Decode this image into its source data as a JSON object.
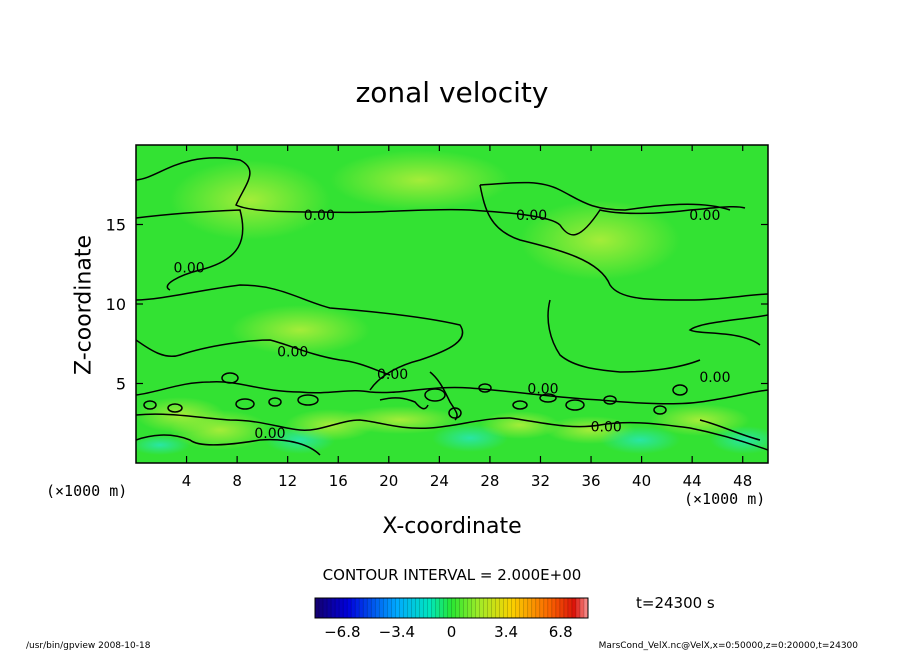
{
  "chart_data": {
    "type": "heatmap",
    "title": "zonal velocity",
    "xlabel": "X-coordinate",
    "ylabel": "Z-coordinate",
    "x_unit_left": "(×1000 m)",
    "x_unit_right": "(×1000 m)",
    "xlim": [
      0,
      50
    ],
    "ylim": [
      0,
      20
    ],
    "x_ticks": [
      4,
      8,
      12,
      16,
      20,
      24,
      28,
      32,
      36,
      40,
      44,
      48
    ],
    "y_ticks": [
      5,
      10,
      15
    ],
    "contour_interval_text": "CONTOUR INTERVAL = 2.000E+00",
    "contour_labels": [
      {
        "text": "0.00",
        "x": 14.5,
        "y": 15.6
      },
      {
        "text": "0.00",
        "x": 31.3,
        "y": 15.6
      },
      {
        "text": "0.00",
        "x": 45.0,
        "y": 15.6
      },
      {
        "text": "0.00",
        "x": 4.2,
        "y": 12.3
      },
      {
        "text": "0.00",
        "x": 12.4,
        "y": 7.0
      },
      {
        "text": "0.00",
        "x": 20.3,
        "y": 5.6
      },
      {
        "text": "0.00",
        "x": 32.2,
        "y": 4.7
      },
      {
        "text": "0.00",
        "x": 45.8,
        "y": 5.4
      },
      {
        "text": "0.00",
        "x": 10.6,
        "y": 1.9
      },
      {
        "text": "0.00",
        "x": 37.2,
        "y": 2.3
      }
    ],
    "colorbar": {
      "min": -8.5,
      "max": 8.5,
      "ticks": [
        -6.8,
        -3.4,
        0,
        3.4,
        6.8
      ],
      "tick_labels": [
        "−6.8",
        "−3.4",
        "0",
        "3.4",
        "6.8"
      ]
    },
    "time_label": "t=24300 s",
    "colors": {
      "field_main": "#33e233",
      "field_light": "#86ec3c",
      "field_cyan": "#2ee6a6"
    }
  },
  "footer": {
    "left": "/usr/bin/gpview   2008-10-18",
    "right": "MarsCond_VelX.nc@VelX,x=0:50000,z=0:20000,t=24300"
  }
}
